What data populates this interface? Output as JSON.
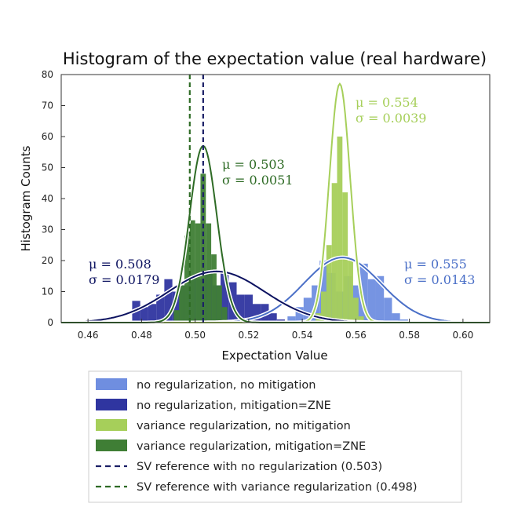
{
  "chart_data": {
    "type": "bar",
    "title": "Histogram of the expectation value (real hardware)",
    "xlabel": "Expectation Value",
    "ylabel": "Histogram Counts",
    "xlim": [
      0.45,
      0.61
    ],
    "ylim": [
      0,
      80
    ],
    "xticks": [
      "0.46",
      "0.48",
      "0.50",
      "0.52",
      "0.54",
      "0.56",
      "0.58",
      "0.60"
    ],
    "yticks": [
      "0",
      "10",
      "20",
      "30",
      "40",
      "50",
      "60",
      "70",
      "80"
    ],
    "grid": false,
    "legend_position": "below",
    "series": [
      {
        "name": "no regularization, no mitigation",
        "color": "#6f8ee0",
        "bins": [
          [
            0.536,
            2
          ],
          [
            0.539,
            5
          ],
          [
            0.542,
            8
          ],
          [
            0.545,
            12
          ],
          [
            0.548,
            20
          ],
          [
            0.551,
            16
          ],
          [
            0.554,
            10
          ],
          [
            0.557,
            15
          ],
          [
            0.56,
            12
          ],
          [
            0.563,
            19
          ],
          [
            0.566,
            14
          ],
          [
            0.569,
            15
          ],
          [
            0.572,
            8
          ],
          [
            0.575,
            3
          ],
          [
            0.578,
            1
          ]
        ],
        "fit": {
          "mu": 0.555,
          "sigma": 0.0143,
          "peak": 21
        },
        "label": [
          "μ = 0.555",
          "σ = 0.0143"
        ]
      },
      {
        "name": "no regularization, mitigation=ZNE",
        "color": "#2f35a0",
        "bins": [
          [
            0.478,
            7
          ],
          [
            0.481,
            5
          ],
          [
            0.484,
            6
          ],
          [
            0.487,
            9
          ],
          [
            0.49,
            14
          ],
          [
            0.493,
            10
          ],
          [
            0.496,
            12
          ],
          [
            0.499,
            15
          ],
          [
            0.502,
            14
          ],
          [
            0.505,
            16
          ],
          [
            0.508,
            12
          ],
          [
            0.511,
            16
          ],
          [
            0.514,
            13
          ],
          [
            0.517,
            9
          ],
          [
            0.52,
            9
          ],
          [
            0.523,
            6
          ],
          [
            0.526,
            6
          ],
          [
            0.529,
            3
          ],
          [
            0.532,
            1
          ]
        ],
        "fit": {
          "mu": 0.508,
          "sigma": 0.0179,
          "peak": 16.5
        },
        "label": [
          "μ = 0.508",
          "σ = 0.0179"
        ]
      },
      {
        "name": "variance regularization, no mitigation",
        "color": "#a6cf5a",
        "bins": [
          [
            0.546,
            3
          ],
          [
            0.548,
            10
          ],
          [
            0.55,
            25
          ],
          [
            0.552,
            45
          ],
          [
            0.554,
            60
          ],
          [
            0.556,
            42
          ],
          [
            0.558,
            20
          ],
          [
            0.56,
            8
          ],
          [
            0.562,
            2
          ]
        ],
        "fit": {
          "mu": 0.554,
          "sigma": 0.0039,
          "peak": 77
        },
        "label": [
          "μ = 0.554",
          "σ = 0.0039"
        ]
      },
      {
        "name": "variance regularization, mitigation=ZNE",
        "color": "#3f7e35",
        "bins": [
          [
            0.493,
            4
          ],
          [
            0.495,
            12
          ],
          [
            0.497,
            28
          ],
          [
            0.499,
            33
          ],
          [
            0.501,
            32
          ],
          [
            0.503,
            48
          ],
          [
            0.505,
            32
          ],
          [
            0.507,
            22
          ],
          [
            0.509,
            12
          ],
          [
            0.511,
            5
          ]
        ],
        "fit": {
          "mu": 0.503,
          "sigma": 0.0051,
          "peak": 57
        },
        "label": [
          "μ = 0.503",
          "σ = 0.0051"
        ]
      }
    ],
    "reference_lines": [
      {
        "name": "SV reference with no regularization (0.503)",
        "x": 0.503,
        "color": "#1a1f66"
      },
      {
        "name": "SV reference with variance regularization (0.498)",
        "x": 0.498,
        "color": "#2e6b25"
      }
    ],
    "fit_colors": [
      "#4a6fc7",
      "#0c1260",
      "#a6cf5a",
      "#2e6b25"
    ]
  }
}
